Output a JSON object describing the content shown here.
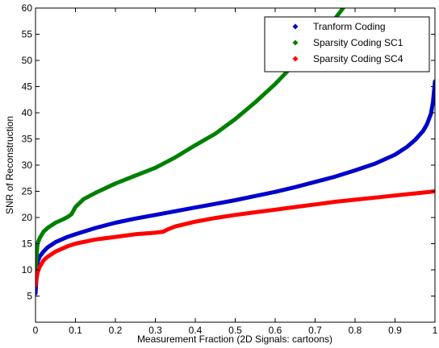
{
  "chart_data": {
    "type": "line",
    "xlabel": "Measurement Fraction (2D Signals: cartoons)",
    "ylabel": "SNR of Reconstruction",
    "xlim": [
      0,
      1
    ],
    "ylim": [
      0,
      60
    ],
    "x_ticks": [
      0,
      0.1,
      0.2,
      0.3,
      0.4,
      0.5,
      0.6,
      0.7,
      0.8,
      0.9,
      1
    ],
    "x_tick_labels": [
      "0",
      "0.1",
      "0.2",
      "0.3",
      "0.4",
      "0.5",
      "0.6",
      "0.7",
      "0.8",
      "0.9",
      "1"
    ],
    "y_ticks": [
      5,
      10,
      15,
      20,
      25,
      30,
      35,
      40,
      45,
      50,
      55,
      60
    ],
    "y_tick_labels": [
      "5",
      "10",
      "15",
      "20",
      "25",
      "30",
      "35",
      "40",
      "45",
      "50",
      "55",
      "60"
    ],
    "grid": false,
    "legend_position": "top-right",
    "series": [
      {
        "name": "Tranform Coding",
        "color": "#0000cc",
        "x": [
          0,
          0.005,
          0.01,
          0.02,
          0.03,
          0.05,
          0.08,
          0.1,
          0.15,
          0.2,
          0.25,
          0.3,
          0.35,
          0.4,
          0.45,
          0.5,
          0.55,
          0.6,
          0.65,
          0.7,
          0.75,
          0.8,
          0.85,
          0.9,
          0.93,
          0.95,
          0.97,
          0.98,
          0.99,
          0.995,
          1.0
        ],
        "y": [
          5.5,
          11.5,
          12.5,
          13.5,
          14.3,
          15.3,
          16.3,
          16.8,
          18.0,
          19.0,
          19.8,
          20.5,
          21.2,
          21.9,
          22.6,
          23.3,
          24.1,
          24.9,
          25.8,
          26.8,
          27.8,
          29.0,
          30.3,
          32.0,
          33.5,
          34.8,
          36.5,
          37.8,
          39.8,
          42.0,
          46.0
        ]
      },
      {
        "name": "Sparsity Coding SC1",
        "color": "#008000",
        "x": [
          0,
          0.005,
          0.01,
          0.02,
          0.03,
          0.05,
          0.07,
          0.08,
          0.09,
          0.1,
          0.12,
          0.15,
          0.2,
          0.25,
          0.3,
          0.35,
          0.4,
          0.45,
          0.5,
          0.55,
          0.6,
          0.65,
          0.7,
          0.74,
          0.77
        ],
        "y": [
          10.0,
          15.0,
          16.0,
          17.3,
          18.0,
          19.0,
          19.7,
          20.1,
          20.6,
          22.0,
          23.5,
          24.7,
          26.5,
          28.0,
          29.5,
          31.5,
          33.8,
          36.0,
          38.8,
          42.0,
          45.5,
          49.5,
          53.8,
          57.0,
          60.0
        ]
      },
      {
        "name": "Sparsity Coding SC4",
        "color": "#ff0000",
        "x": [
          0,
          0.005,
          0.01,
          0.02,
          0.03,
          0.05,
          0.08,
          0.1,
          0.15,
          0.2,
          0.25,
          0.3,
          0.32,
          0.33,
          0.35,
          0.4,
          0.45,
          0.5,
          0.55,
          0.6,
          0.65,
          0.7,
          0.75,
          0.8,
          0.85,
          0.9,
          0.95,
          1.0
        ],
        "y": [
          7.0,
          9.5,
          10.5,
          11.8,
          12.5,
          13.5,
          14.5,
          15.0,
          15.8,
          16.3,
          16.8,
          17.1,
          17.3,
          17.7,
          18.3,
          19.2,
          19.9,
          20.5,
          21.0,
          21.5,
          22.0,
          22.5,
          23.0,
          23.4,
          23.8,
          24.2,
          24.6,
          25.0
        ]
      }
    ]
  }
}
